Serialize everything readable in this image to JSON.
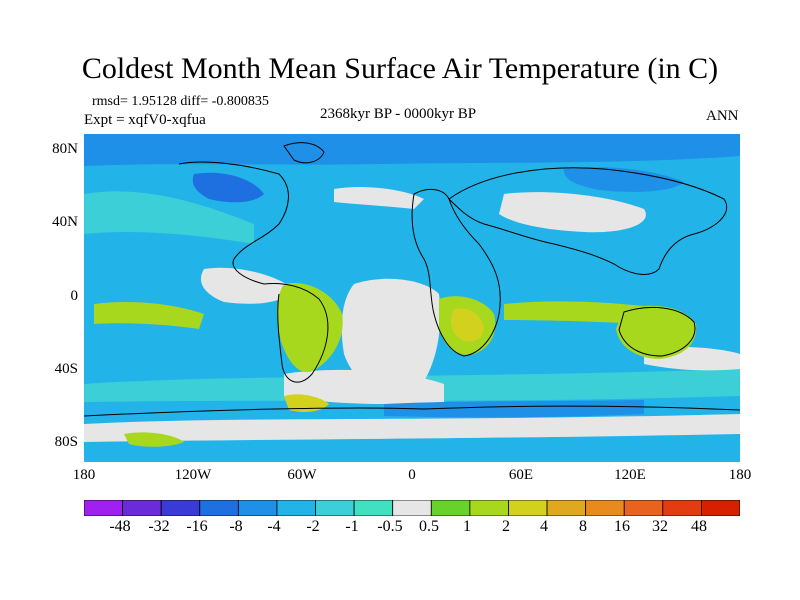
{
  "title": "Coldest Month Mean Surface Air Temperature (in C)",
  "stats": "rmsd= 1.95128 diff= -0.800835",
  "experiment": "Expt = xqfV0-xqfua",
  "period": "2368kyr BP - 0000kyr BP",
  "season": "ANN",
  "lat_labels": [
    "80N",
    "40N",
    "0",
    "40S",
    "80S"
  ],
  "lon_labels": [
    "180",
    "120W",
    "60W",
    "0",
    "60E",
    "120E",
    "180"
  ],
  "legend": {
    "labels": [
      "-48",
      "-32",
      "-16",
      "-8",
      "-4",
      "-2",
      "-1",
      "-0.5",
      "0.5",
      "1",
      "2",
      "4",
      "8",
      "16",
      "32",
      "48"
    ],
    "colors": [
      "#a020f0",
      "#6a2cd8",
      "#3a3ad6",
      "#1e6fe0",
      "#1e90e8",
      "#22b4e8",
      "#3ccfd8",
      "#40e0c0",
      "#e6e6e6",
      "#66d22a",
      "#a8d81e",
      "#d2d21e",
      "#e0a81e",
      "#e88a1e",
      "#e8641e",
      "#e43c10",
      "#d62000"
    ]
  },
  "map_colors": {
    "ocean": "#22b4e8",
    "ocean_light": "#3ccfd8",
    "neutral": "#e6e6e6",
    "warm": "#a8d81e",
    "warmer": "#d2d21e",
    "hot": "#e0a81e",
    "cold": "#1e90e8",
    "colder": "#1e6fe0"
  }
}
